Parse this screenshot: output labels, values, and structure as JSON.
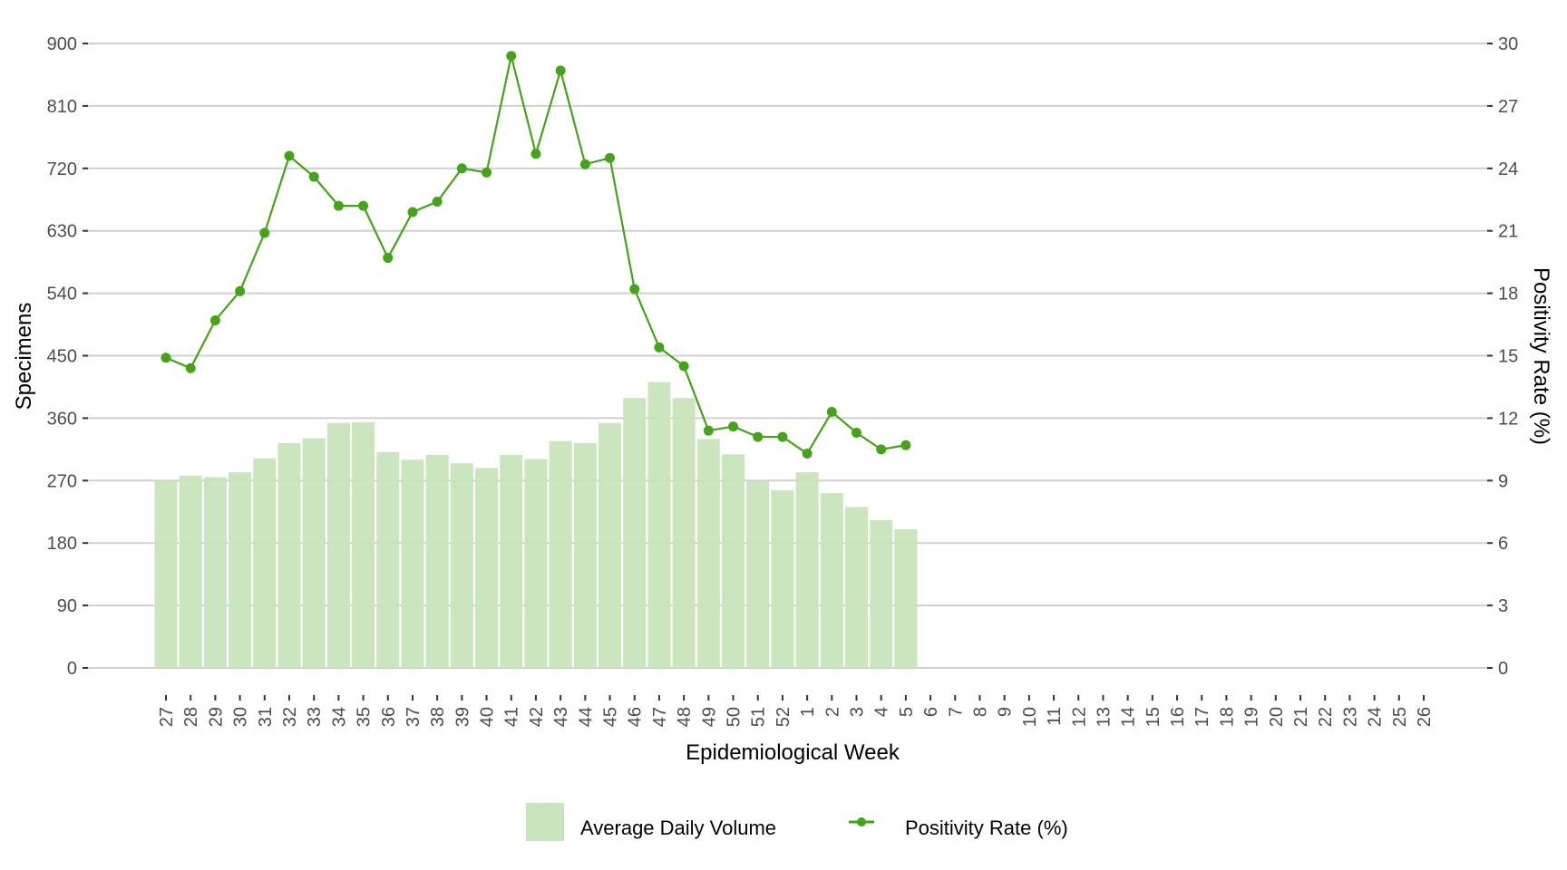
{
  "chart_data": {
    "type": "bar+line",
    "title": "",
    "xlabel": "Epidemiological Week",
    "ylabel": "Specimens",
    "y2label": "Positivity Rate (%)",
    "ylim": [
      0,
      900
    ],
    "y2lim": [
      0,
      30
    ],
    "yticks": [
      0,
      90,
      180,
      270,
      360,
      450,
      540,
      630,
      720,
      810,
      900
    ],
    "y2ticks": [
      0,
      3,
      6,
      9,
      12,
      15,
      18,
      21,
      24,
      27,
      30
    ],
    "grid": true,
    "legend_position": "bottom",
    "categories": [
      "27",
      "28",
      "29",
      "30",
      "31",
      "32",
      "33",
      "34",
      "35",
      "36",
      "37",
      "38",
      "39",
      "40",
      "41",
      "42",
      "43",
      "44",
      "45",
      "46",
      "47",
      "48",
      "49",
      "50",
      "51",
      "52",
      "1",
      "2",
      "3",
      "4",
      "5",
      "6",
      "7",
      "8",
      "9",
      "10",
      "11",
      "12",
      "13",
      "14",
      "15",
      "16",
      "17",
      "18",
      "19",
      "20",
      "21",
      "22",
      "23",
      "24",
      "25",
      "26"
    ],
    "series": [
      {
        "name": "Average Daily Volume",
        "type": "bar",
        "axis": "left",
        "color": "#c8e4bc",
        "values": [
          270,
          277,
          275,
          282,
          302,
          324,
          331,
          353,
          354,
          311,
          300,
          307,
          295,
          288,
          307,
          301,
          327,
          324,
          353,
          389,
          412,
          389,
          330,
          308,
          269,
          256,
          282,
          252,
          232,
          213,
          200,
          null,
          null,
          null,
          null,
          null,
          null,
          null,
          null,
          null,
          null,
          null,
          null,
          null,
          null,
          null,
          null,
          null,
          null,
          null,
          null,
          null
        ]
      },
      {
        "name": "Positivity Rate (%)",
        "type": "line",
        "axis": "right",
        "color": "#45a31a",
        "values": [
          14.9,
          14.4,
          16.7,
          18.1,
          20.9,
          24.6,
          23.6,
          22.2,
          22.2,
          19.7,
          21.9,
          22.4,
          24.0,
          23.8,
          29.4,
          24.7,
          28.7,
          24.2,
          24.5,
          18.2,
          15.4,
          14.5,
          11.4,
          11.6,
          11.1,
          11.1,
          10.3,
          12.3,
          11.3,
          10.5,
          10.7,
          null,
          null,
          null,
          null,
          null,
          null,
          null,
          null,
          null,
          null,
          null,
          null,
          null,
          null,
          null,
          null,
          null,
          null,
          null,
          null,
          null
        ]
      }
    ]
  },
  "legend": {
    "bar_label": "Average Daily Volume",
    "line_label": "Positivity Rate (%)"
  }
}
